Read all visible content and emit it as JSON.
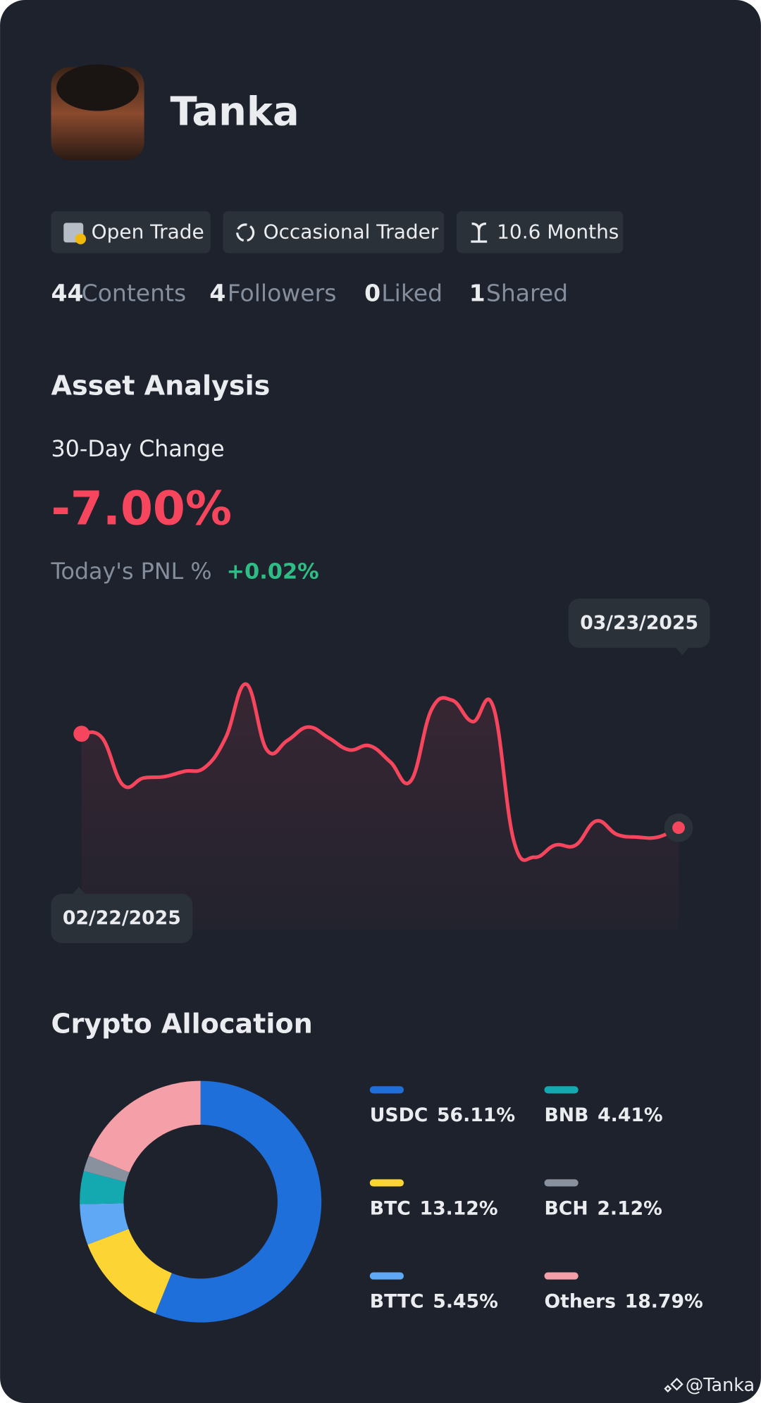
{
  "profile": {
    "name": "Tanka",
    "badges": [
      "Open Trade",
      "Occasional Trader",
      "10.6 Months"
    ],
    "stats": [
      {
        "value": 44,
        "label": "Contents"
      },
      {
        "value": 4,
        "label": "Followers"
      },
      {
        "value": 0,
        "label": "Liked"
      },
      {
        "value": 1,
        "label": "Shared"
      }
    ]
  },
  "asset_analysis": {
    "title": "Asset Analysis",
    "change_label": "30-Day Change",
    "change": "-7.00%",
    "pnl_label": "Today's PNL %",
    "pnl": "+0.02%"
  },
  "chart_data": [
    {
      "type": "line",
      "x": [
        "02/22/2025",
        null,
        null,
        null,
        null,
        null,
        null,
        null,
        null,
        null,
        null,
        null,
        null,
        null,
        null,
        null,
        null,
        null,
        null,
        null,
        null,
        null,
        null,
        null,
        null,
        null,
        null,
        null,
        null,
        "03/23/2025"
      ],
      "values": [
        0,
        -0.3,
        -3.8,
        -3.3,
        -3.2,
        -2.8,
        -2.5,
        -0.3,
        3.7,
        -1.2,
        -0.5,
        0.5,
        -0.3,
        -1.2,
        -0.9,
        -2.1,
        -3.5,
        1.8,
        2.5,
        0.9,
        2.0,
        -8.0,
        -9.2,
        -8.3,
        -8.3,
        -6.5,
        -7.5,
        -7.7,
        -7.7,
        -7.0
      ],
      "color": "#f6465d",
      "ylim": [
        -14.33,
        8.67
      ]
    },
    {
      "type": "pie",
      "title": "Crypto Allocation",
      "categories": [
        "USDC",
        "BTC",
        "BTTC",
        "BNB",
        "BCH",
        "Others"
      ],
      "values": [
        56.11,
        13.12,
        5.45,
        4.41,
        2.12,
        18.79
      ],
      "value_labels": [
        "56.11%",
        "13.12%",
        "5.45%",
        "4.41%",
        "2.12%",
        "18.79%"
      ],
      "colors": [
        "#1e6fd9",
        "#fcd535",
        "#5ea8f5",
        "#14a9b0",
        "#8a919e",
        "#f5a0a8"
      ]
    }
  ],
  "watermark": "@Tanka"
}
